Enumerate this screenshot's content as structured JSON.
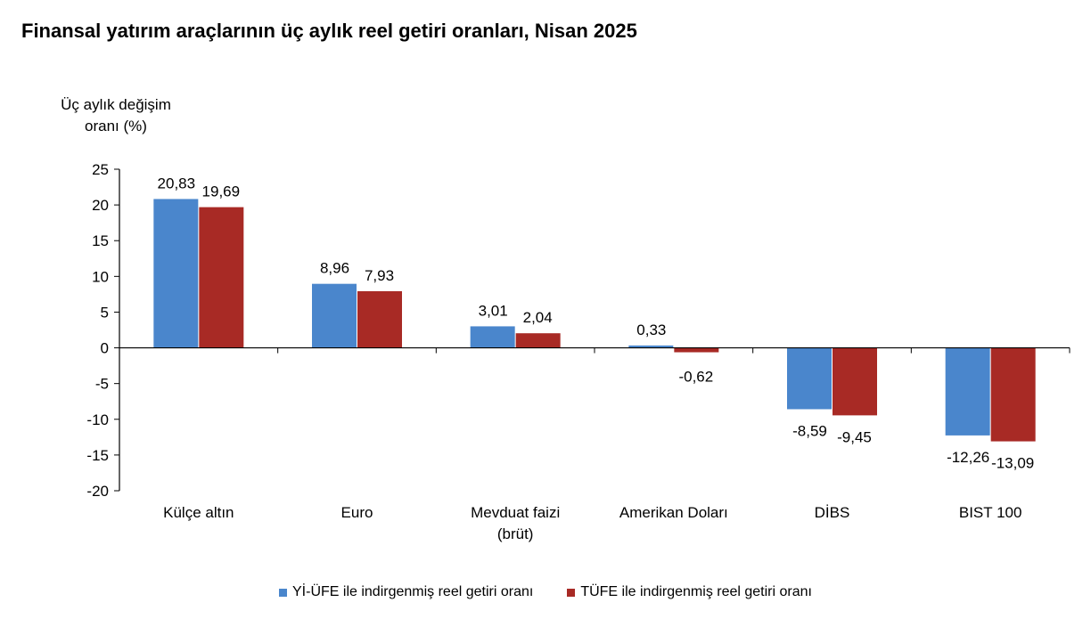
{
  "title": "Finansal yatırım araçlarının üç aylık reel getiri oranları, Nisan 2025",
  "chart_data": {
    "type": "bar",
    "ylabel_lines": [
      "Üç aylık değişim",
      "oranı (%)"
    ],
    "ylim": [
      -20,
      25
    ],
    "yticks": [
      25,
      20,
      15,
      10,
      5,
      0,
      -5,
      -10,
      -15,
      -20
    ],
    "ytick_labels": [
      "25",
      "20",
      "15",
      "10",
      "5",
      "0",
      "-5",
      "-10",
      "-15",
      "-20"
    ],
    "categories": [
      [
        "Külçe altın"
      ],
      [
        "Euro"
      ],
      [
        "Mevduat faizi",
        "(brüt)"
      ],
      [
        "Amerikan Doları"
      ],
      [
        "DİBS"
      ],
      [
        "BIST 100"
      ]
    ],
    "series": [
      {
        "name": "Yİ-ÜFE ile indirgenmiş reel getiri oranı",
        "color": "#4a86cc",
        "values": [
          20.83,
          8.96,
          3.01,
          0.33,
          -8.59,
          -12.26
        ],
        "labels": [
          "20,83",
          "8,96",
          "3,01",
          "0,33",
          "-8,59",
          "-12,26"
        ]
      },
      {
        "name": "TÜFE ile indirgenmiş reel getiri oranı",
        "color": "#a82a25",
        "values": [
          19.69,
          7.93,
          2.04,
          -0.62,
          -9.45,
          -13.09
        ],
        "labels": [
          "19,69",
          "7,93",
          "2,04",
          "-0,62",
          "-9,45",
          "-13,09"
        ]
      }
    ],
    "grid": false,
    "legend_position": "bottom"
  }
}
